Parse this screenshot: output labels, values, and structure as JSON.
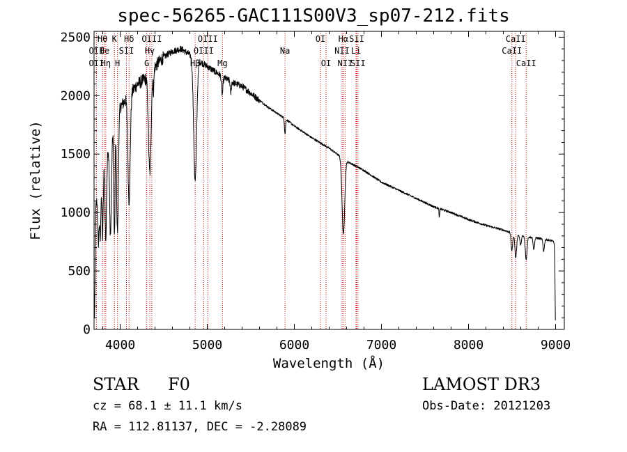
{
  "chart_data": {
    "type": "line",
    "title": "spec-56265-GAC111S00V3_sp07-212.fits",
    "xlabel": "Wavelength (Å)",
    "ylabel": "Flux (relative)",
    "xlim": [
      3700,
      9100
    ],
    "ylim": [
      0,
      2550
    ],
    "xticks": [
      4000,
      5000,
      6000,
      7000,
      8000,
      9000
    ],
    "yticks": [
      0,
      500,
      1000,
      1500,
      2000,
      2500
    ],
    "line_color": "#000000",
    "marker_color": "#cc0000",
    "spectrum": {
      "continuum": [
        [
          3700,
          900
        ],
        [
          3750,
          1250
        ],
        [
          3800,
          1450
        ],
        [
          3850,
          1550
        ],
        [
          3900,
          1700
        ],
        [
          3950,
          1800
        ],
        [
          4000,
          1900
        ],
        [
          4100,
          2000
        ],
        [
          4200,
          2100
        ],
        [
          4300,
          2150
        ],
        [
          4400,
          2250
        ],
        [
          4500,
          2330
        ],
        [
          4600,
          2380
        ],
        [
          4700,
          2400
        ],
        [
          4800,
          2350
        ],
        [
          4900,
          2300
        ],
        [
          5000,
          2250
        ],
        [
          5100,
          2200
        ],
        [
          5200,
          2150
        ],
        [
          5300,
          2110
        ],
        [
          5400,
          2080
        ],
        [
          5500,
          2020
        ],
        [
          5600,
          1960
        ],
        [
          5700,
          1900
        ],
        [
          5800,
          1850
        ],
        [
          5900,
          1800
        ],
        [
          6000,
          1740
        ],
        [
          6200,
          1640
        ],
        [
          6400,
          1550
        ],
        [
          6600,
          1440
        ],
        [
          6800,
          1360
        ],
        [
          7000,
          1260
        ],
        [
          7200,
          1190
        ],
        [
          7400,
          1120
        ],
        [
          7600,
          1050
        ],
        [
          7800,
          1000
        ],
        [
          8000,
          940
        ],
        [
          8200,
          890
        ],
        [
          8400,
          850
        ],
        [
          8600,
          800
        ],
        [
          8800,
          780
        ],
        [
          8950,
          760
        ],
        [
          9000,
          740
        ]
      ],
      "absorptions": [
        {
          "wave": 3705,
          "depth": 850,
          "width": 6
        },
        {
          "wave": 3750,
          "depth": 500,
          "width": 8
        },
        {
          "wave": 3771,
          "depth": 550,
          "width": 7
        },
        {
          "wave": 3798,
          "depth": 650,
          "width": 8
        },
        {
          "wave": 3835,
          "depth": 750,
          "width": 9
        },
        {
          "wave": 3889,
          "depth": 850,
          "width": 11
        },
        {
          "wave": 3934,
          "depth": 1000,
          "width": 7
        },
        {
          "wave": 3969,
          "depth": 1000,
          "width": 10
        },
        {
          "wave": 4102,
          "depth": 900,
          "width": 13
        },
        {
          "wave": 4340,
          "depth": 850,
          "width": 15
        },
        {
          "wave": 4383,
          "depth": 180,
          "width": 5
        },
        {
          "wave": 4861,
          "depth": 1050,
          "width": 17
        },
        {
          "wave": 5172,
          "depth": 150,
          "width": 8
        },
        {
          "wave": 5270,
          "depth": 100,
          "width": 6
        },
        {
          "wave": 5893,
          "depth": 130,
          "width": 6
        },
        {
          "wave": 6563,
          "depth": 650,
          "width": 15
        },
        {
          "wave": 7665,
          "depth": 80,
          "width": 4
        },
        {
          "wave": 8498,
          "depth": 150,
          "width": 9
        },
        {
          "wave": 8542,
          "depth": 200,
          "width": 10
        },
        {
          "wave": 8598,
          "depth": 80,
          "width": 8
        },
        {
          "wave": 8662,
          "depth": 200,
          "width": 10
        },
        {
          "wave": 8750,
          "depth": 100,
          "width": 8
        },
        {
          "wave": 8863,
          "depth": 100,
          "width": 8
        },
        {
          "wave": 9000,
          "depth": 700,
          "width": 6
        }
      ]
    },
    "line_markers": [
      {
        "label": "Hθ",
        "wave": 3797,
        "row": 0
      },
      {
        "label": "OII",
        "wave": 3727,
        "row": 1
      },
      {
        "label": "OII",
        "wave": 3727,
        "row": 2
      },
      {
        "label": "He",
        "wave": 3820,
        "row": 1
      },
      {
        "label": "Hη",
        "wave": 3835,
        "row": 2
      },
      {
        "label": "K",
        "wave": 3934,
        "row": 0
      },
      {
        "label": "SII",
        "wave": 4072,
        "row": 1
      },
      {
        "label": "H",
        "wave": 3969,
        "row": 2
      },
      {
        "label": "Hδ",
        "wave": 4102,
        "row": 0
      },
      {
        "label": "OIII",
        "wave": 4363,
        "row": 0
      },
      {
        "label": "Hγ",
        "wave": 4340,
        "row": 1
      },
      {
        "label": "G",
        "wave": 4305,
        "row": 2
      },
      {
        "label": "OIII",
        "wave": 5007,
        "row": 0
      },
      {
        "label": "OIII",
        "wave": 4959,
        "row": 1
      },
      {
        "label": "Hβ",
        "wave": 4861,
        "row": 2
      },
      {
        "label": "Mg",
        "wave": 5175,
        "row": 2
      },
      {
        "label": "Na",
        "wave": 5893,
        "row": 1
      },
      {
        "label": "OI",
        "wave": 6300,
        "row": 0
      },
      {
        "label": "OI",
        "wave": 6364,
        "row": 2
      },
      {
        "label": "Hα",
        "wave": 6563,
        "row": 0
      },
      {
        "label": "SII",
        "wave": 6716,
        "row": 0
      },
      {
        "label": "NII",
        "wave": 6548,
        "row": 1
      },
      {
        "label": "Li",
        "wave": 6708,
        "row": 1
      },
      {
        "label": "NII",
        "wave": 6583,
        "row": 2
      },
      {
        "label": "SII",
        "wave": 6731,
        "row": 2
      },
      {
        "label": "CaII",
        "wave": 8542,
        "row": 0
      },
      {
        "label": "CaII",
        "wave": 8498,
        "row": 1
      },
      {
        "label": "CaII",
        "wave": 8662,
        "row": 2
      }
    ]
  },
  "info": {
    "object_class": "STAR",
    "subclass": "F0",
    "survey": "LAMOST DR3",
    "cz_line": "cz = 68.1 ± 11.1 km/s",
    "obs_date": "Obs-Date: 20121203",
    "coords": "RA = 112.81137, DEC =  -2.28089"
  }
}
